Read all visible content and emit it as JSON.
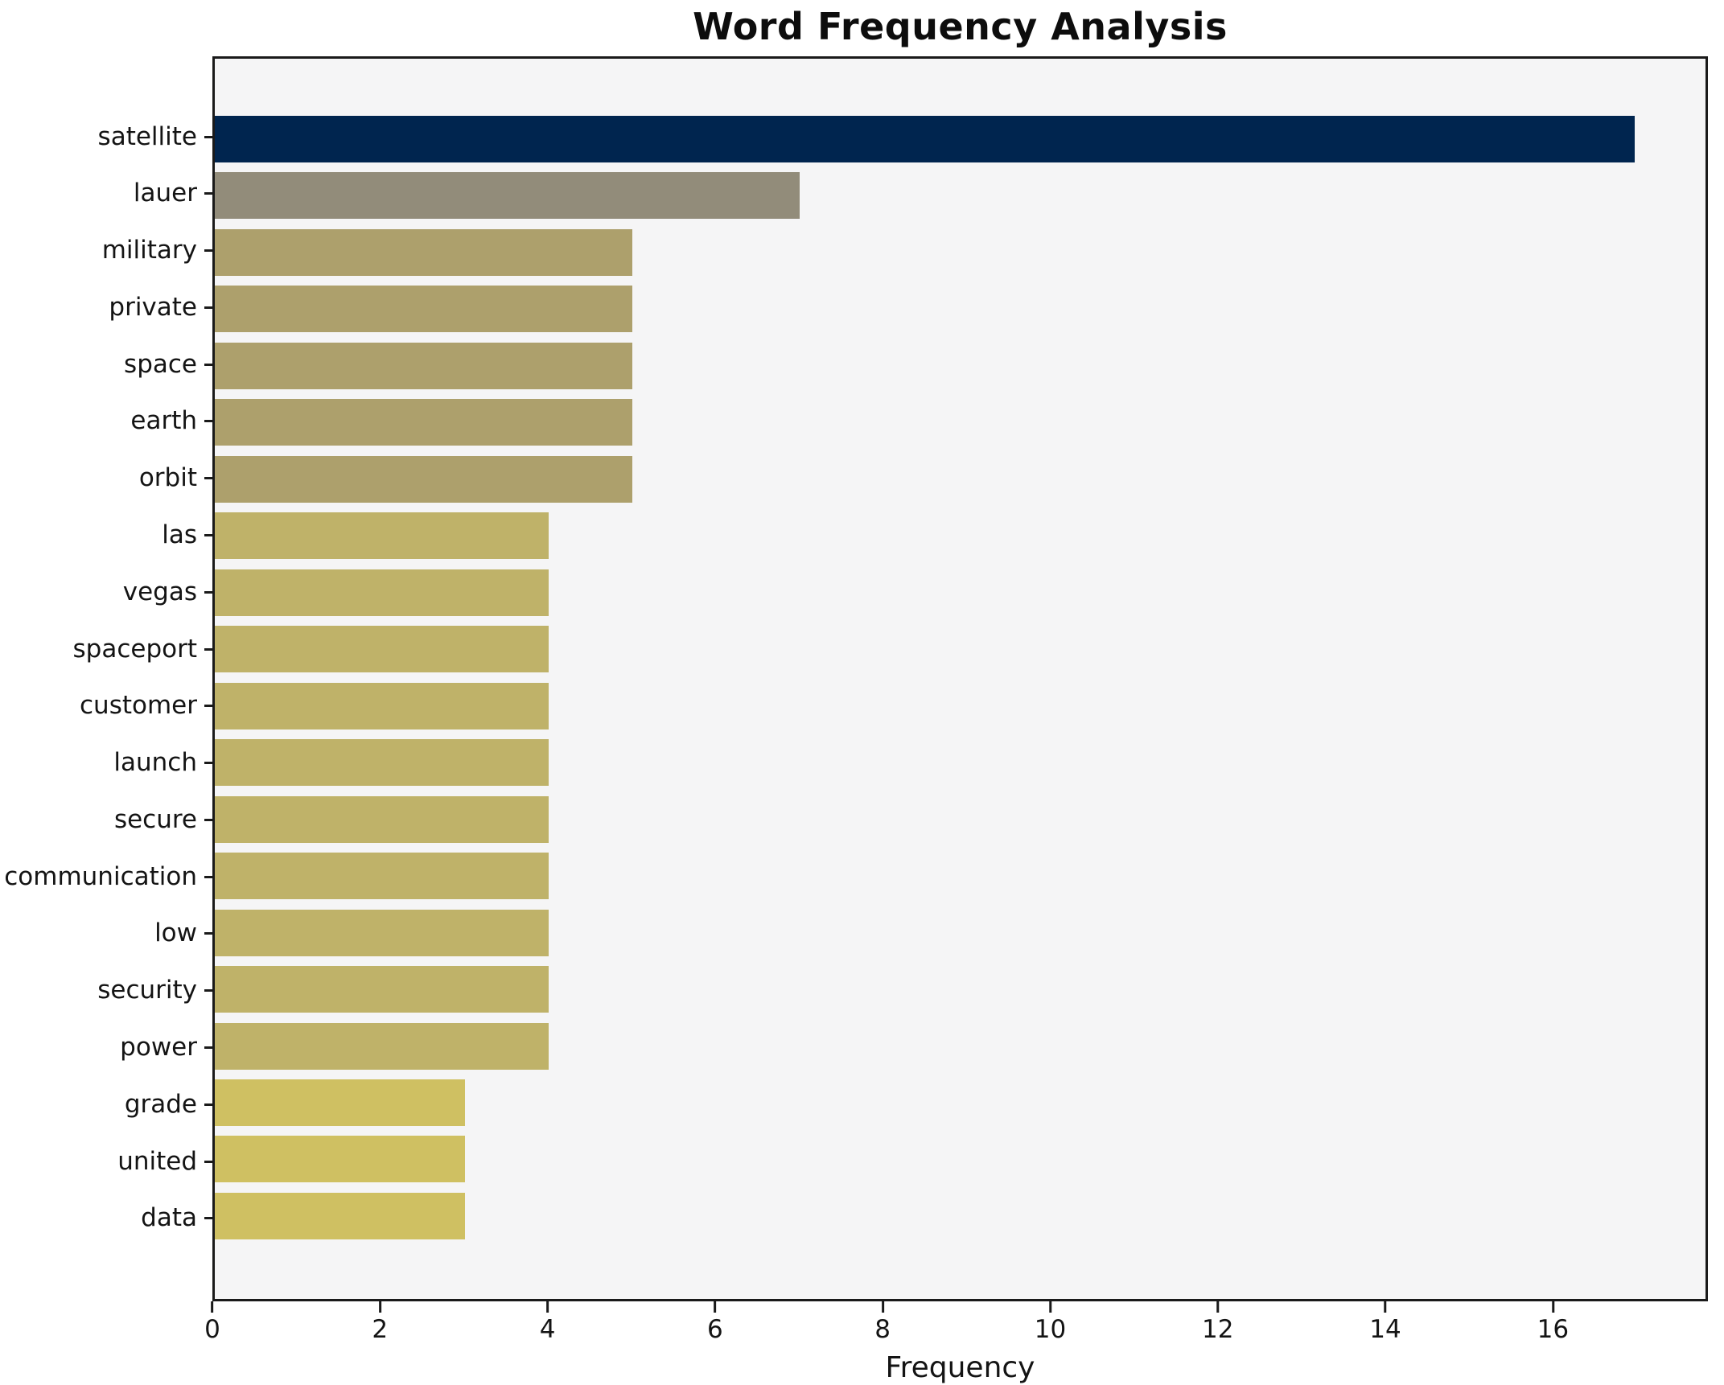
{
  "title": "Word Frequency Analysis",
  "chart_data": {
    "type": "bar",
    "orientation": "horizontal",
    "title": "Word Frequency Analysis",
    "xlabel": "Frequency",
    "ylabel": "",
    "grid": false,
    "legend": null,
    "plot_background": "#f5f5f6",
    "spine_color": "#1a1a1a",
    "xlim": [
      0,
      17.85
    ],
    "xticks": [
      0,
      2,
      4,
      6,
      8,
      10,
      12,
      14,
      16
    ],
    "categories": [
      "satellite",
      "lauer",
      "military",
      "private",
      "space",
      "earth",
      "orbit",
      "las",
      "vegas",
      "spaceport",
      "customer",
      "launch",
      "secure",
      "communication",
      "low",
      "security",
      "power",
      "grade",
      "united",
      "data"
    ],
    "values": [
      17,
      7,
      5,
      5,
      5,
      5,
      5,
      4,
      4,
      4,
      4,
      4,
      4,
      4,
      4,
      4,
      4,
      3,
      3,
      3
    ],
    "bar_colors": [
      "#00254f",
      "#928c7a",
      "#ada06c",
      "#ada06c",
      "#ada06c",
      "#ada06c",
      "#ada06c",
      "#bfb269",
      "#bfb269",
      "#bfb269",
      "#bfb269",
      "#bfb269",
      "#bfb269",
      "#bfb269",
      "#bfb269",
      "#bfb269",
      "#bfb269",
      "#cfc062",
      "#cfc062",
      "#cfc062"
    ]
  }
}
